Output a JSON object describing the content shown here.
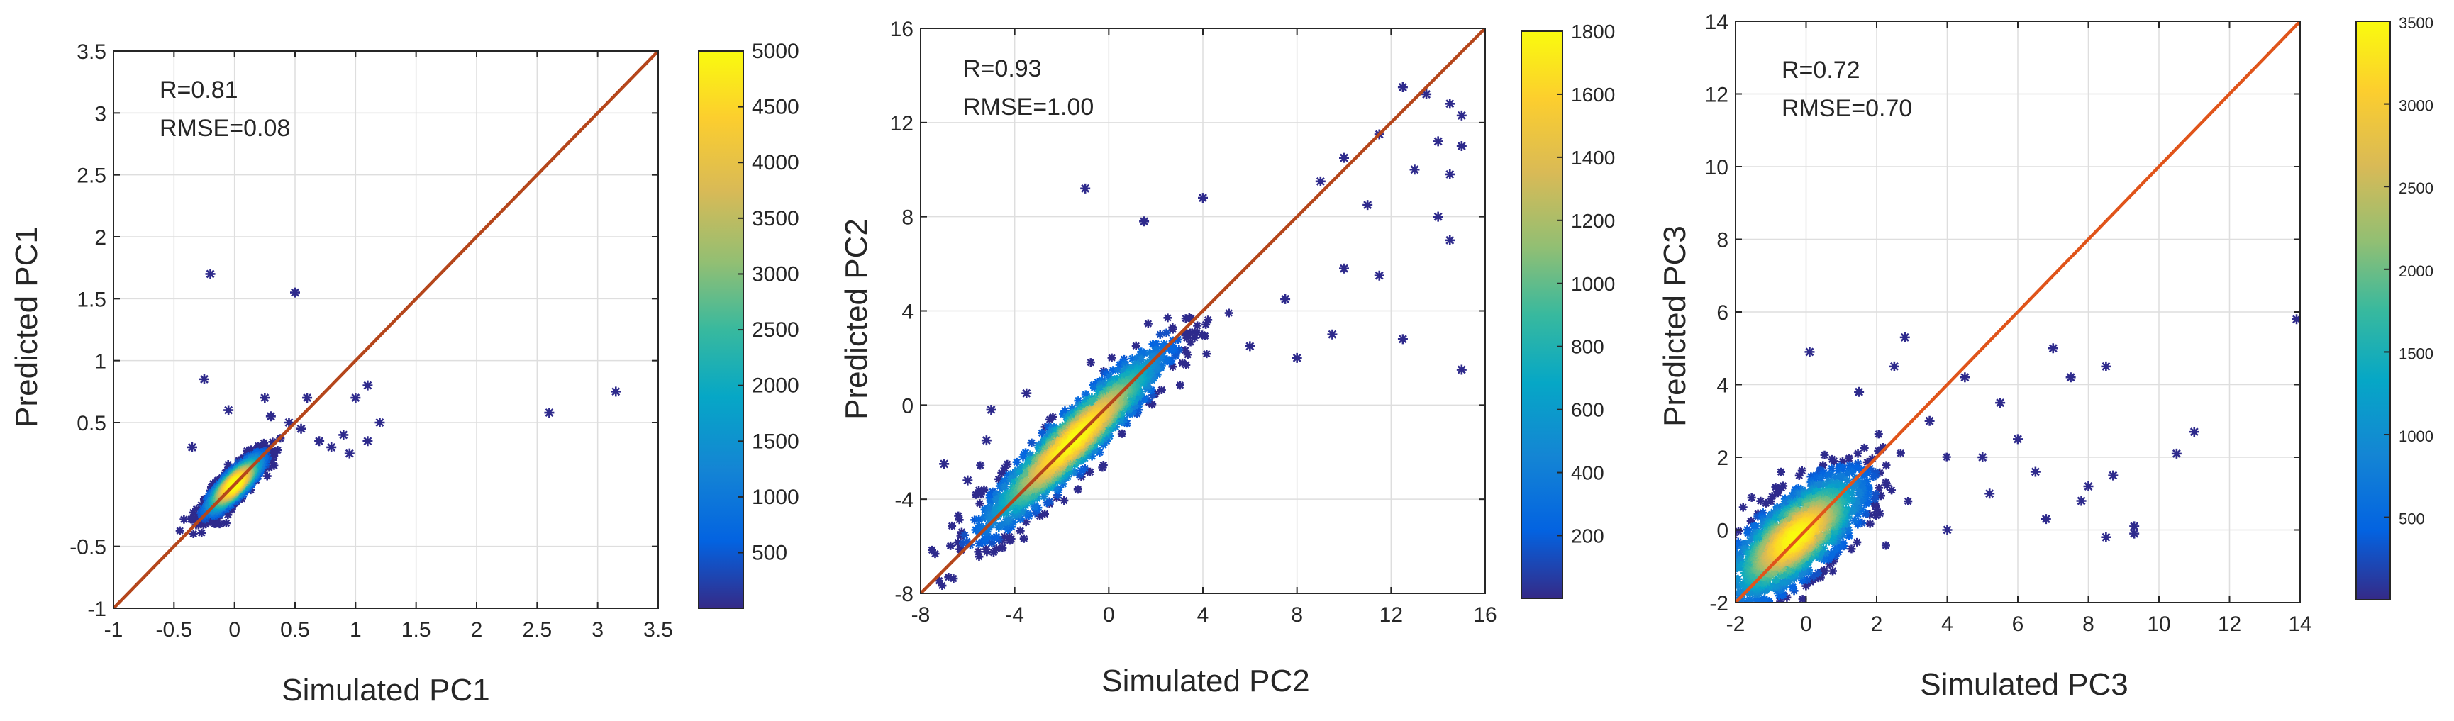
{
  "chart_data": [
    {
      "type": "scatter",
      "xlabel": "Simulated PC1",
      "ylabel": "Predicted PC1",
      "xlim": [
        -1,
        3.5
      ],
      "ylim": [
        -1,
        3.5
      ],
      "xticks": [
        -1,
        -0.5,
        0,
        0.5,
        1,
        1.5,
        2,
        2.5,
        3,
        3.5
      ],
      "xtick_labels": [
        "-1",
        "-0.5",
        "0",
        "0.5",
        "1",
        "1.5",
        "2",
        "2.5",
        "3",
        "3.5"
      ],
      "yticks": [
        -1,
        -0.5,
        0.5,
        1,
        1.5,
        2,
        2.5,
        3,
        3.5
      ],
      "ytick_labels": [
        "-1",
        "-0.5",
        "0.5",
        "1",
        "1.5",
        "2",
        "2.5",
        "3",
        "3.5"
      ],
      "annotations": [
        "R=0.81",
        "RMSE=0.08"
      ],
      "grid": true,
      "reference_line": {
        "from": [
          -1,
          -1
        ],
        "to": [
          3.5,
          3.5
        ],
        "color": "#B5461B"
      },
      "marker": "asterisk",
      "cluster": {
        "center": [
          0,
          0
        ],
        "spread": [
          0.12,
          0.12
        ],
        "corr": 0.85
      },
      "points_outliers": [
        [
          -0.2,
          1.7
        ],
        [
          0.5,
          1.55
        ],
        [
          -0.25,
          0.85
        ],
        [
          0.25,
          0.7
        ],
        [
          0.6,
          0.7
        ],
        [
          1.1,
          0.8
        ],
        [
          1.0,
          0.7
        ],
        [
          1.2,
          0.5
        ],
        [
          1.1,
          0.35
        ],
        [
          0.8,
          0.3
        ],
        [
          0.9,
          0.4
        ],
        [
          2.6,
          0.58
        ],
        [
          3.15,
          0.75
        ],
        [
          -0.05,
          0.6
        ],
        [
          0.3,
          0.55
        ],
        [
          0.7,
          0.35
        ],
        [
          0.55,
          0.45
        ],
        [
          -0.35,
          0.3
        ],
        [
          0.95,
          0.25
        ],
        [
          0.45,
          0.5
        ]
      ],
      "colorbar": {
        "min": 1,
        "max": 5000,
        "ticks": [
          500,
          1000,
          1500,
          2000,
          2500,
          3000,
          3500,
          4000,
          4500,
          5000
        ],
        "tick_labels": [
          "500",
          "1000",
          "1500",
          "2000",
          "2500",
          "3000",
          "3500",
          "4000",
          "4500",
          "5000"
        ]
      }
    },
    {
      "type": "scatter",
      "xlabel": "Simulated PC2",
      "ylabel": "Predicted PC2",
      "xlim": [
        -8,
        16
      ],
      "ylim": [
        -8,
        16
      ],
      "xticks": [
        -8,
        -4,
        0,
        4,
        8,
        12,
        16
      ],
      "xtick_labels": [
        "-8",
        "-4",
        "0",
        "4",
        "8",
        "12",
        "16"
      ],
      "yticks": [
        -8,
        -4,
        0,
        4,
        8,
        12,
        16
      ],
      "ytick_labels": [
        "-8",
        "-4",
        "0",
        "4",
        "8",
        "12",
        "16"
      ],
      "annotations": [
        "R=0.93",
        "RMSE=1.00"
      ],
      "grid": true,
      "reference_line": {
        "from": [
          -8,
          -8
        ],
        "to": [
          16,
          16
        ],
        "color": "#B5461B"
      },
      "marker": "asterisk",
      "cluster": {
        "center": [
          -1.5,
          -1.5
        ],
        "spread": [
          2.0,
          2.0
        ],
        "corr": 0.93
      },
      "points_outliers": [
        [
          -1,
          9.2
        ],
        [
          1.5,
          7.8
        ],
        [
          4,
          8.8
        ],
        [
          12.5,
          13.5
        ],
        [
          13.5,
          13.2
        ],
        [
          14.5,
          12.8
        ],
        [
          15,
          12.3
        ],
        [
          14,
          11.2
        ],
        [
          15,
          11
        ],
        [
          14.5,
          9.8
        ],
        [
          14,
          8.0
        ],
        [
          14.5,
          7.0
        ],
        [
          11.5,
          5.5
        ],
        [
          12.5,
          2.8
        ],
        [
          15,
          1.5
        ],
        [
          9.5,
          3.0
        ],
        [
          10,
          5.8
        ],
        [
          11,
          8.5
        ],
        [
          -7,
          -2.5
        ],
        [
          -6,
          -3.2
        ],
        [
          -5,
          -0.2
        ],
        [
          -5.2,
          -1.5
        ],
        [
          -3.5,
          0.5
        ],
        [
          8,
          2
        ],
        [
          9,
          9.5
        ],
        [
          10,
          10.5
        ],
        [
          13,
          10
        ],
        [
          11.5,
          11.5
        ],
        [
          7.5,
          4.5
        ],
        [
          6,
          2.5
        ]
      ],
      "colorbar": {
        "min": 1,
        "max": 1800,
        "ticks": [
          200,
          400,
          600,
          800,
          1000,
          1200,
          1400,
          1600,
          1800
        ],
        "tick_labels": [
          "200",
          "400",
          "600",
          "800",
          "1000",
          "1200",
          "1400",
          "1600",
          "1800"
        ]
      }
    },
    {
      "type": "scatter",
      "xlabel": "Simulated PC3",
      "ylabel": "Predicted PC3",
      "xlim": [
        -2,
        14
      ],
      "ylim": [
        -2,
        14
      ],
      "xticks": [
        -2,
        0,
        2,
        4,
        6,
        8,
        10,
        12,
        14
      ],
      "xtick_labels": [
        "-2",
        "0",
        "2",
        "4",
        "6",
        "8",
        "10",
        "12",
        "14"
      ],
      "yticks": [
        -2,
        0,
        2,
        4,
        6,
        8,
        10,
        12,
        14
      ],
      "ytick_labels": [
        "-2",
        "0",
        "2",
        "4",
        "6",
        "8",
        "10",
        "12",
        "14"
      ],
      "annotations": [
        "R=0.72",
        "RMSE=0.70"
      ],
      "grid": true,
      "reference_line": {
        "from": [
          -2,
          -2
        ],
        "to": [
          14,
          14
        ],
        "color": "#E0541A"
      },
      "marker": "asterisk",
      "cluster": {
        "center": [
          -0.3,
          -0.2
        ],
        "spread": [
          1.0,
          0.9
        ],
        "corr": 0.72
      },
      "points_outliers": [
        [
          13.9,
          5.8
        ],
        [
          11,
          2.7
        ],
        [
          10.5,
          2.1
        ],
        [
          9.3,
          0.1
        ],
        [
          9.3,
          -0.1
        ],
        [
          8.5,
          -0.2
        ],
        [
          8.5,
          4.5
        ],
        [
          8,
          1.2
        ],
        [
          7.5,
          4.2
        ],
        [
          7,
          5.0
        ],
        [
          6.5,
          1.6
        ],
        [
          6,
          2.5
        ],
        [
          5.5,
          3.5
        ],
        [
          5,
          2.0
        ],
        [
          4.5,
          4.2
        ],
        [
          2.8,
          5.3
        ],
        [
          0.1,
          4.9
        ],
        [
          7.8,
          0.8
        ],
        [
          8.7,
          1.5
        ],
        [
          6.8,
          0.3
        ],
        [
          4,
          0.0
        ],
        [
          5.2,
          1.0
        ],
        [
          3.5,
          3.0
        ],
        [
          2.5,
          4.5
        ],
        [
          1.5,
          3.8
        ]
      ],
      "colorbar": {
        "min": 1,
        "max": 3500,
        "ticks": [
          500,
          1000,
          1500,
          2000,
          2500,
          3000,
          3500
        ],
        "tick_labels": [
          "500",
          "1000",
          "1500",
          "2000",
          "2500",
          "3000",
          "3500"
        ]
      }
    }
  ],
  "colors": {
    "parula": [
      "#352A87",
      "#0363E1",
      "#1485D4",
      "#06A7C6",
      "#38B99E",
      "#92BF73",
      "#D9BA56",
      "#FCCE2E",
      "#F9FB0E"
    ],
    "axis": "#262626",
    "grid": "#DEDEDE",
    "outlier_marker": "#2E2A8C"
  }
}
